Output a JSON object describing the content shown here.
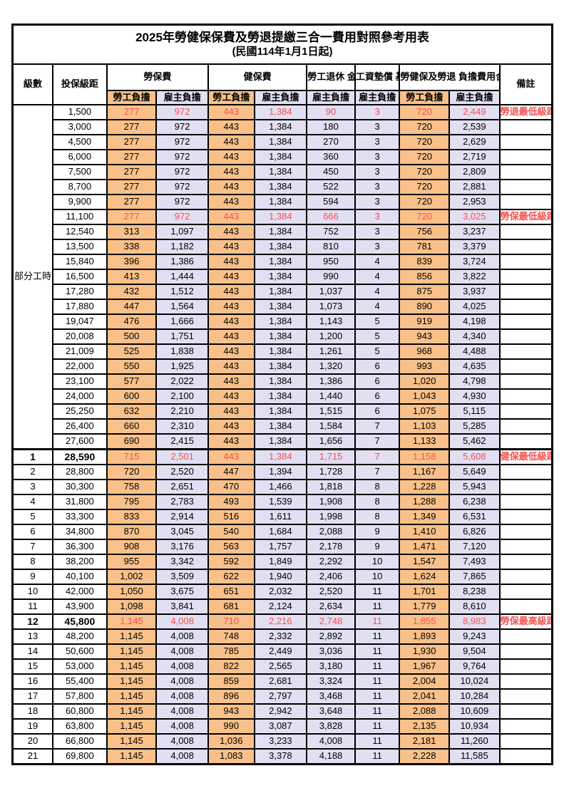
{
  "title": "2025年勞健保保費及勞退提繳三合一費用對照參考用表",
  "subtitle": "(民國114年1月1日起)",
  "colors": {
    "employee_column_bg": "#F9C189",
    "employer_column_bg": "#E2DFF2",
    "highlight_text": "#F75050",
    "border": "#000000"
  },
  "header": {
    "level": "級數",
    "bracket": "投保級距",
    "labor_group": "勞保費",
    "health_group": "健保費",
    "pension_group": "勞工退休\n金(提繳6%)",
    "fund_group": "工資墊償\n基金",
    "total_group": "勞健保及勞退\n負擔費用合計",
    "note": "備註",
    "sub_employee": "勞工負擔",
    "sub_employer": "雇主負擔"
  },
  "part_time": {
    "label": "部分工時",
    "rowspan": 23
  },
  "rows": [
    {
      "level": "",
      "bracket": "1,500",
      "values": [
        "277",
        "972",
        "443",
        "1,384",
        "90",
        "3",
        "720",
        "2,449"
      ],
      "note": "勞退最低級距",
      "red": true,
      "bold": false
    },
    {
      "level": "",
      "bracket": "3,000",
      "values": [
        "277",
        "972",
        "443",
        "1,384",
        "180",
        "3",
        "720",
        "2,539"
      ],
      "note": "",
      "red": false,
      "bold": false
    },
    {
      "level": "",
      "bracket": "4,500",
      "values": [
        "277",
        "972",
        "443",
        "1,384",
        "270",
        "3",
        "720",
        "2,629"
      ],
      "note": "",
      "red": false,
      "bold": false
    },
    {
      "level": "",
      "bracket": "6,000",
      "values": [
        "277",
        "972",
        "443",
        "1,384",
        "360",
        "3",
        "720",
        "2,719"
      ],
      "note": "",
      "red": false,
      "bold": false
    },
    {
      "level": "",
      "bracket": "7,500",
      "values": [
        "277",
        "972",
        "443",
        "1,384",
        "450",
        "3",
        "720",
        "2,809"
      ],
      "note": "",
      "red": false,
      "bold": false
    },
    {
      "level": "",
      "bracket": "8,700",
      "values": [
        "277",
        "972",
        "443",
        "1,384",
        "522",
        "3",
        "720",
        "2,881"
      ],
      "note": "",
      "red": false,
      "bold": false
    },
    {
      "level": "",
      "bracket": "9,900",
      "values": [
        "277",
        "972",
        "443",
        "1,384",
        "594",
        "3",
        "720",
        "2,953"
      ],
      "note": "",
      "red": false,
      "bold": false
    },
    {
      "level": "",
      "bracket": "11,100",
      "values": [
        "277",
        "972",
        "443",
        "1,384",
        "666",
        "3",
        "720",
        "3,025"
      ],
      "note": "勞保最低級距",
      "red": true,
      "bold": false
    },
    {
      "level": "",
      "bracket": "12,540",
      "values": [
        "313",
        "1,097",
        "443",
        "1,384",
        "752",
        "3",
        "756",
        "3,237"
      ],
      "note": "",
      "red": false,
      "bold": false
    },
    {
      "level": "",
      "bracket": "13,500",
      "values": [
        "338",
        "1,182",
        "443",
        "1,384",
        "810",
        "3",
        "781",
        "3,379"
      ],
      "note": "",
      "red": false,
      "bold": false
    },
    {
      "level": "",
      "bracket": "15,840",
      "values": [
        "396",
        "1,386",
        "443",
        "1,384",
        "950",
        "4",
        "839",
        "3,724"
      ],
      "note": "",
      "red": false,
      "bold": false
    },
    {
      "level": "",
      "bracket": "16,500",
      "values": [
        "413",
        "1,444",
        "443",
        "1,384",
        "990",
        "4",
        "856",
        "3,822"
      ],
      "note": "",
      "red": false,
      "bold": false
    },
    {
      "level": "",
      "bracket": "17,280",
      "values": [
        "432",
        "1,512",
        "443",
        "1,384",
        "1,037",
        "4",
        "875",
        "3,937"
      ],
      "note": "",
      "red": false,
      "bold": false
    },
    {
      "level": "",
      "bracket": "17,880",
      "values": [
        "447",
        "1,564",
        "443",
        "1,384",
        "1,073",
        "4",
        "890",
        "4,025"
      ],
      "note": "",
      "red": false,
      "bold": false
    },
    {
      "level": "",
      "bracket": "19,047",
      "values": [
        "476",
        "1,666",
        "443",
        "1,384",
        "1,143",
        "5",
        "919",
        "4,198"
      ],
      "note": "",
      "red": false,
      "bold": false
    },
    {
      "level": "",
      "bracket": "20,008",
      "values": [
        "500",
        "1,751",
        "443",
        "1,384",
        "1,200",
        "5",
        "943",
        "4,340"
      ],
      "note": "",
      "red": false,
      "bold": false
    },
    {
      "level": "",
      "bracket": "21,009",
      "values": [
        "525",
        "1,838",
        "443",
        "1,384",
        "1,261",
        "5",
        "968",
        "4,488"
      ],
      "note": "",
      "red": false,
      "bold": false
    },
    {
      "level": "",
      "bracket": "22,000",
      "values": [
        "550",
        "1,925",
        "443",
        "1,384",
        "1,320",
        "6",
        "993",
        "4,635"
      ],
      "note": "",
      "red": false,
      "bold": false
    },
    {
      "level": "",
      "bracket": "23,100",
      "values": [
        "577",
        "2,022",
        "443",
        "1,384",
        "1,386",
        "6",
        "1,020",
        "4,798"
      ],
      "note": "",
      "red": false,
      "bold": false
    },
    {
      "level": "",
      "bracket": "24,000",
      "values": [
        "600",
        "2,100",
        "443",
        "1,384",
        "1,440",
        "6",
        "1,043",
        "4,930"
      ],
      "note": "",
      "red": false,
      "bold": false
    },
    {
      "level": "",
      "bracket": "25,250",
      "values": [
        "632",
        "2,210",
        "443",
        "1,384",
        "1,515",
        "6",
        "1,075",
        "5,115"
      ],
      "note": "",
      "red": false,
      "bold": false
    },
    {
      "level": "",
      "bracket": "26,400",
      "values": [
        "660",
        "2,310",
        "443",
        "1,384",
        "1,584",
        "7",
        "1,103",
        "5,285"
      ],
      "note": "",
      "red": false,
      "bold": false
    },
    {
      "level": "",
      "bracket": "27,600",
      "values": [
        "690",
        "2,415",
        "443",
        "1,384",
        "1,656",
        "7",
        "1,133",
        "5,462"
      ],
      "note": "",
      "red": false,
      "bold": false
    },
    {
      "level": "1",
      "bracket": "28,590",
      "values": [
        "715",
        "2,501",
        "443",
        "1,384",
        "1,715",
        "7",
        "1,158",
        "5,608"
      ],
      "note": "健保最低級距",
      "red": true,
      "bold": true,
      "section_sep": true
    },
    {
      "level": "2",
      "bracket": "28,800",
      "values": [
        "720",
        "2,520",
        "447",
        "1,394",
        "1,728",
        "7",
        "1,167",
        "5,649"
      ],
      "note": "",
      "red": false,
      "bold": false
    },
    {
      "level": "3",
      "bracket": "30,300",
      "values": [
        "758",
        "2,651",
        "470",
        "1,466",
        "1,818",
        "8",
        "1,228",
        "5,943"
      ],
      "note": "",
      "red": false,
      "bold": false
    },
    {
      "level": "4",
      "bracket": "31,800",
      "values": [
        "795",
        "2,783",
        "493",
        "1,539",
        "1,908",
        "8",
        "1,288",
        "6,238"
      ],
      "note": "",
      "red": false,
      "bold": false
    },
    {
      "level": "5",
      "bracket": "33,300",
      "values": [
        "833",
        "2,914",
        "516",
        "1,611",
        "1,998",
        "8",
        "1,349",
        "6,531"
      ],
      "note": "",
      "red": false,
      "bold": false
    },
    {
      "level": "6",
      "bracket": "34,800",
      "values": [
        "870",
        "3,045",
        "540",
        "1,684",
        "2,088",
        "9",
        "1,410",
        "6,826"
      ],
      "note": "",
      "red": false,
      "bold": false
    },
    {
      "level": "7",
      "bracket": "36,300",
      "values": [
        "908",
        "3,176",
        "563",
        "1,757",
        "2,178",
        "9",
        "1,471",
        "7,120"
      ],
      "note": "",
      "red": false,
      "bold": false
    },
    {
      "level": "8",
      "bracket": "38,200",
      "values": [
        "955",
        "3,342",
        "592",
        "1,849",
        "2,292",
        "10",
        "1,547",
        "7,493"
      ],
      "note": "",
      "red": false,
      "bold": false
    },
    {
      "level": "9",
      "bracket": "40,100",
      "values": [
        "1,002",
        "3,509",
        "622",
        "1,940",
        "2,406",
        "10",
        "1,624",
        "7,865"
      ],
      "note": "",
      "red": false,
      "bold": false
    },
    {
      "level": "10",
      "bracket": "42,000",
      "values": [
        "1,050",
        "3,675",
        "651",
        "2,032",
        "2,520",
        "11",
        "1,701",
        "8,238"
      ],
      "note": "",
      "red": false,
      "bold": false
    },
    {
      "level": "11",
      "bracket": "43,900",
      "values": [
        "1,098",
        "3,841",
        "681",
        "2,124",
        "2,634",
        "11",
        "1,779",
        "8,610"
      ],
      "note": "",
      "red": false,
      "bold": false
    },
    {
      "level": "12",
      "bracket": "45,800",
      "values": [
        "1,145",
        "4,008",
        "710",
        "2,216",
        "2,748",
        "11",
        "1,855",
        "8,983"
      ],
      "note": "勞保最高級距",
      "red": true,
      "bold": true
    },
    {
      "level": "13",
      "bracket": "48,200",
      "values": [
        "1,145",
        "4,008",
        "748",
        "2,332",
        "2,892",
        "11",
        "1,893",
        "9,243"
      ],
      "note": "",
      "red": false,
      "bold": false
    },
    {
      "level": "14",
      "bracket": "50,600",
      "values": [
        "1,145",
        "4,008",
        "785",
        "2,449",
        "3,036",
        "11",
        "1,930",
        "9,504"
      ],
      "note": "",
      "red": false,
      "bold": false
    },
    {
      "level": "15",
      "bracket": "53,000",
      "values": [
        "1,145",
        "4,008",
        "822",
        "2,565",
        "3,180",
        "11",
        "1,967",
        "9,764"
      ],
      "note": "",
      "red": false,
      "bold": false
    },
    {
      "level": "16",
      "bracket": "55,400",
      "values": [
        "1,145",
        "4,008",
        "859",
        "2,681",
        "3,324",
        "11",
        "2,004",
        "10,024"
      ],
      "note": "",
      "red": false,
      "bold": false
    },
    {
      "level": "17",
      "bracket": "57,800",
      "values": [
        "1,145",
        "4,008",
        "896",
        "2,797",
        "3,468",
        "11",
        "2,041",
        "10,284"
      ],
      "note": "",
      "red": false,
      "bold": false
    },
    {
      "level": "18",
      "bracket": "60,800",
      "values": [
        "1,145",
        "4,008",
        "943",
        "2,942",
        "3,648",
        "11",
        "2,088",
        "10,609"
      ],
      "note": "",
      "red": false,
      "bold": false
    },
    {
      "level": "19",
      "bracket": "63,800",
      "values": [
        "1,145",
        "4,008",
        "990",
        "3,087",
        "3,828",
        "11",
        "2,135",
        "10,934"
      ],
      "note": "",
      "red": false,
      "bold": false
    },
    {
      "level": "20",
      "bracket": "66,800",
      "values": [
        "1,145",
        "4,008",
        "1,036",
        "3,233",
        "4,008",
        "11",
        "2,181",
        "11,260"
      ],
      "note": "",
      "red": false,
      "bold": false
    },
    {
      "level": "21",
      "bracket": "69,800",
      "values": [
        "1,145",
        "4,008",
        "1,083",
        "3,378",
        "4,188",
        "11",
        "2,228",
        "11,585"
      ],
      "note": "",
      "red": false,
      "bold": false
    }
  ]
}
